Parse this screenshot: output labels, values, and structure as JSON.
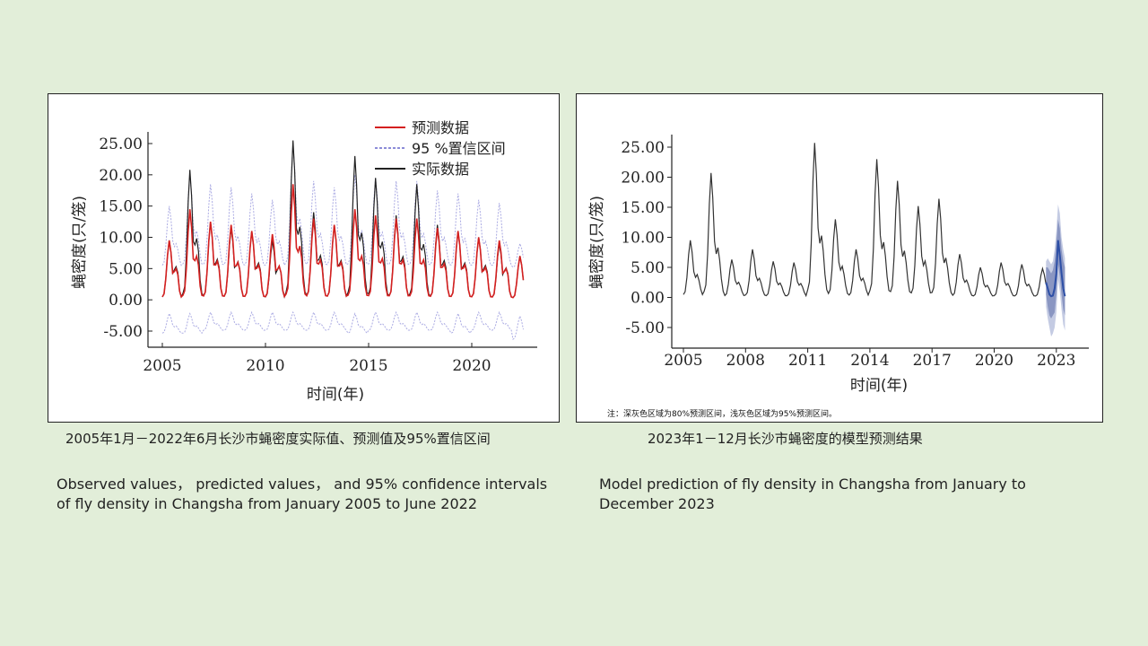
{
  "captions": {
    "left_zh": "2005年1月－2022年6月长沙市蝇密度实际值、预测值及95%置信区间",
    "right_zh": "2023年1－12月长沙市蝇密度的模型预测结果",
    "left_en": "Observed values， predicted values， and 95% confidence intervals of fly density in Changsha from January 2005 to June 2022",
    "right_en": "Model prediction of fly density in Changsha from January to December 2023"
  },
  "chart_data": [
    {
      "type": "line",
      "xlabel": "时间(年)",
      "ylabel": "蝇密度(只/笼)",
      "xlim": [
        2005,
        2022.5
      ],
      "ylim": [
        -7,
        27
      ],
      "xticks": [
        "2005",
        "2010",
        "2015",
        "2020"
      ],
      "yticks": [
        "25.00",
        "20.00",
        "15.00",
        "10.00",
        "5.00",
        "0.00",
        "-5.00"
      ],
      "legend_position": "top-right",
      "legend": [
        "预测数据",
        "95 %置信区间",
        "实际数据"
      ],
      "series_colors": {
        "predicted": "#d42020",
        "ci": "#6666cc",
        "observed": "#222222"
      },
      "annual_peaks": {
        "years": [
          2005,
          2006,
          2007,
          2008,
          2009,
          2010,
          2011,
          2012,
          2013,
          2014,
          2015,
          2016,
          2017,
          2018,
          2019,
          2020,
          2021,
          2022
        ],
        "observed_peak": [
          9.5,
          20.8,
          12.5,
          11.5,
          11.0,
          9.5,
          25.5,
          14.0,
          12.0,
          23.0,
          19.5,
          13.5,
          18.5,
          12.0,
          11.0,
          10.0,
          9.0,
          7.0
        ],
        "predicted_peak": [
          9.5,
          14.5,
          12.5,
          12.0,
          11.0,
          10.5,
          18.5,
          13.0,
          12.0,
          14.5,
          13.5,
          13.0,
          13.0,
          11.5,
          11.0,
          10.0,
          9.5,
          7.0
        ],
        "ci_upper_peak": [
          15.0,
          20.0,
          18.5,
          18.0,
          17.0,
          16.0,
          25.0,
          19.0,
          18.0,
          20.0,
          19.5,
          19.0,
          19.0,
          17.5,
          17.0,
          16.0,
          15.5,
          9.0
        ],
        "ci_lower_min": [
          -5.5,
          -5.5,
          -5.0,
          -5.0,
          -5.0,
          -5.0,
          -5.0,
          -5.0,
          -5.0,
          -5.5,
          -5.0,
          -5.0,
          -5.0,
          -5.0,
          -5.5,
          -5.0,
          -5.0,
          -6.5
        ]
      }
    },
    {
      "type": "line",
      "xlabel": "时间(年)",
      "ylabel": "蝇密度(只/笼)",
      "xlim": [
        2004.5,
        2024.5
      ],
      "ylim": [
        -8,
        27
      ],
      "xticks": [
        "2005",
        "2008",
        "2011",
        "2014",
        "2017",
        "2020",
        "2023"
      ],
      "yticks": [
        "25.00",
        "20.00",
        "15.00",
        "10.00",
        "5.00",
        "0.00",
        "-5.00"
      ],
      "note": "注：深灰色区域为80%预测区间，浅灰色区域为95%预测区间。",
      "series_colors": {
        "observed": "#333333",
        "forecast": "#2d4fa6",
        "pi80": "#8a96c2",
        "pi95": "#c4cbe3"
      },
      "observed_peaks": {
        "years": [
          2005,
          2006,
          2007,
          2008,
          2009,
          2010,
          2011,
          2012,
          2013,
          2014,
          2015,
          2016,
          2017,
          2018,
          2019,
          2020,
          2021,
          2022
        ],
        "values": [
          9.5,
          20.7,
          6.3,
          8.0,
          6.0,
          5.8,
          25.7,
          13.0,
          8.0,
          23.0,
          19.4,
          15.2,
          16.4,
          7.2,
          5.0,
          5.8,
          5.5,
          4.8
        ]
      },
      "forecast_2023": {
        "months": [
          "1",
          "2",
          "3",
          "4",
          "5",
          "6",
          "7",
          "8",
          "9",
          "10",
          "11",
          "12"
        ],
        "values": [
          2.5,
          1.5,
          0.5,
          0.2,
          0.3,
          1.5,
          4.0,
          9.5,
          7.0,
          4.0,
          1.5,
          0.2
        ],
        "pi80_upper": [
          5.0,
          5.0,
          4.5,
          4.0,
          4.5,
          6.0,
          9.0,
          13.0,
          11.5,
          8.0,
          6.0,
          5.0
        ],
        "pi80_lower": [
          0.5,
          -1.5,
          -3.0,
          -3.5,
          -3.0,
          -2.5,
          0.5,
          5.5,
          3.5,
          0.5,
          -2.0,
          -3.0
        ],
        "pi95_upper": [
          6.0,
          6.5,
          6.0,
          5.5,
          6.0,
          8.0,
          11.0,
          15.5,
          14.0,
          10.0,
          8.0,
          6.5
        ],
        "pi95_lower": [
          -1.5,
          -3.5,
          -5.0,
          -6.5,
          -6.0,
          -5.0,
          -2.5,
          3.0,
          1.0,
          -2.0,
          -4.5,
          -5.5
        ]
      }
    }
  ]
}
